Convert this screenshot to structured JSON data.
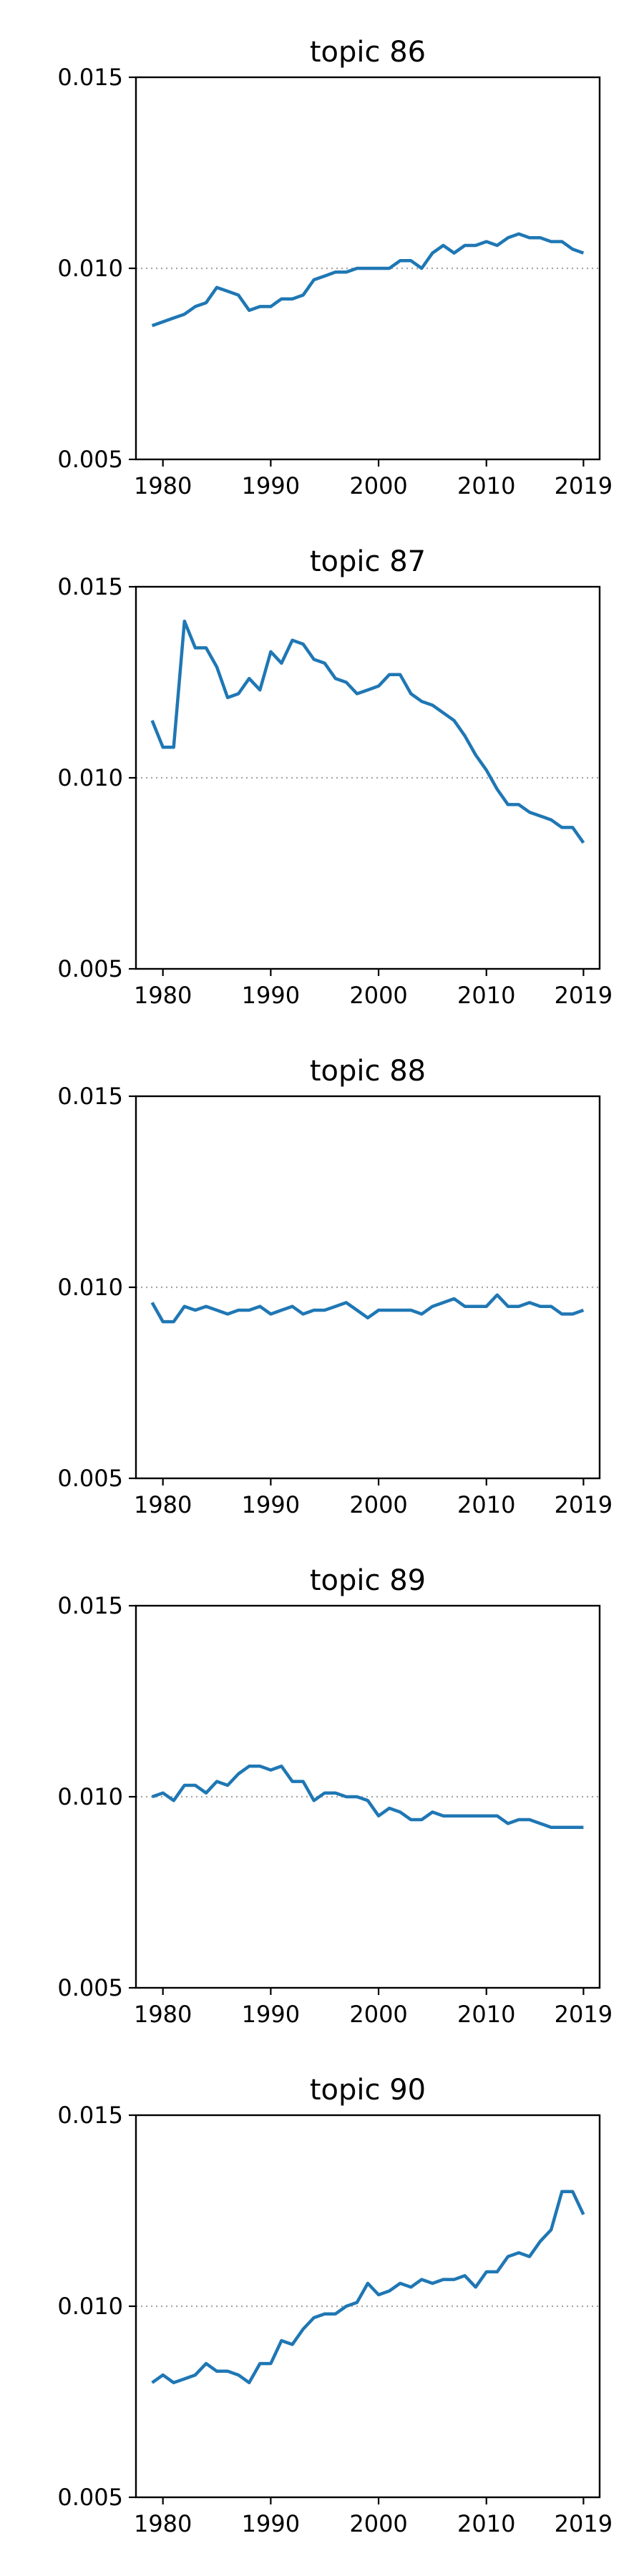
{
  "figure": {
    "background": "#ffffff",
    "line_color": "#1f77b4",
    "reference_line_color": "#a6a6a6"
  },
  "chart_data": [
    {
      "type": "line",
      "title": "topic 86",
      "xlabel": "",
      "ylabel": "",
      "xlim": [
        1977.5,
        2020.5
      ],
      "ylim": [
        0.005,
        0.015
      ],
      "xticks": [
        1980,
        1990,
        2000,
        2010,
        2019
      ],
      "xtick_labels": [
        "1980",
        "1990",
        "2000",
        "2010",
        "2019"
      ],
      "yticks": [
        0.005,
        0.01,
        0.015
      ],
      "ytick_labels": [
        "0.005",
        "0.010",
        "0.015"
      ],
      "reference_line": {
        "y": 0.01,
        "style": "dotted"
      },
      "grid": false,
      "series": [
        {
          "color": "#1f77b4",
          "x": [
            1979,
            1980,
            1981,
            1982,
            1983,
            1984,
            1985,
            1986,
            1987,
            1988,
            1989,
            1990,
            1991,
            1992,
            1993,
            1994,
            1995,
            1996,
            1997,
            1998,
            1999,
            2000,
            2001,
            2002,
            2003,
            2004,
            2005,
            2006,
            2007,
            2008,
            2009,
            2010,
            2011,
            2012,
            2013,
            2014,
            2015,
            2016,
            2017,
            2018,
            2019
          ],
          "values": [
            0.0085,
            0.0086,
            0.0087,
            0.0088,
            0.009,
            0.0091,
            0.0095,
            0.0094,
            0.0093,
            0.0089,
            0.009,
            0.009,
            0.0092,
            0.0092,
            0.0093,
            0.0097,
            0.0098,
            0.0099,
            0.0099,
            0.01,
            0.01,
            0.01,
            0.01,
            0.0102,
            0.0102,
            0.01,
            0.0104,
            0.0106,
            0.0104,
            0.0106,
            0.0106,
            0.0107,
            0.0106,
            0.0108,
            0.0109,
            0.0108,
            0.0108,
            0.0107,
            0.0107,
            0.0105,
            0.0104
          ]
        }
      ]
    },
    {
      "type": "line",
      "title": "topic 87",
      "xlabel": "",
      "ylabel": "",
      "xlim": [
        1977.5,
        2020.5
      ],
      "ylim": [
        0.005,
        0.015
      ],
      "xticks": [
        1980,
        1990,
        2000,
        2010,
        2019
      ],
      "xtick_labels": [
        "1980",
        "1990",
        "2000",
        "2010",
        "2019"
      ],
      "yticks": [
        0.005,
        0.01,
        0.015
      ],
      "ytick_labels": [
        "0.005",
        "0.010",
        "0.015"
      ],
      "reference_line": {
        "y": 0.01,
        "style": "dotted"
      },
      "grid": false,
      "series": [
        {
          "color": "#1f77b4",
          "x": [
            1979,
            1980,
            1981,
            1982,
            1983,
            1984,
            1985,
            1986,
            1987,
            1988,
            1989,
            1990,
            1991,
            1992,
            1993,
            1994,
            1995,
            1996,
            1997,
            1998,
            1999,
            2000,
            2001,
            2002,
            2003,
            2004,
            2005,
            2006,
            2007,
            2008,
            2009,
            2010,
            2011,
            2012,
            2013,
            2014,
            2015,
            2016,
            2017,
            2018,
            2019
          ],
          "values": [
            0.0115,
            0.0108,
            0.0108,
            0.0141,
            0.0134,
            0.0134,
            0.0129,
            0.0121,
            0.0122,
            0.0126,
            0.0123,
            0.0133,
            0.013,
            0.0136,
            0.0135,
            0.0131,
            0.013,
            0.0126,
            0.0125,
            0.0122,
            0.0123,
            0.0124,
            0.0127,
            0.0127,
            0.0122,
            0.012,
            0.0119,
            0.0117,
            0.0115,
            0.0111,
            0.0106,
            0.0102,
            0.0097,
            0.0093,
            0.0093,
            0.0091,
            0.009,
            0.0089,
            0.0087,
            0.0087,
            0.0083
          ]
        }
      ]
    },
    {
      "type": "line",
      "title": "topic 88",
      "xlabel": "",
      "ylabel": "",
      "xlim": [
        1977.5,
        2020.5
      ],
      "ylim": [
        0.005,
        0.015
      ],
      "xticks": [
        1980,
        1990,
        2000,
        2010,
        2019
      ],
      "xtick_labels": [
        "1980",
        "1990",
        "2000",
        "2010",
        "2019"
      ],
      "yticks": [
        0.005,
        0.01,
        0.015
      ],
      "ytick_labels": [
        "0.005",
        "0.010",
        "0.015"
      ],
      "reference_line": {
        "y": 0.01,
        "style": "dotted"
      },
      "grid": false,
      "series": [
        {
          "color": "#1f77b4",
          "x": [
            1979,
            1980,
            1981,
            1982,
            1983,
            1984,
            1985,
            1986,
            1987,
            1988,
            1989,
            1990,
            1991,
            1992,
            1993,
            1994,
            1995,
            1996,
            1997,
            1998,
            1999,
            2000,
            2001,
            2002,
            2003,
            2004,
            2005,
            2006,
            2007,
            2008,
            2009,
            2010,
            2011,
            2012,
            2013,
            2014,
            2015,
            2016,
            2017,
            2018,
            2019
          ],
          "values": [
            0.0096,
            0.0091,
            0.0091,
            0.0095,
            0.0094,
            0.0095,
            0.0094,
            0.0093,
            0.0094,
            0.0094,
            0.0095,
            0.0093,
            0.0094,
            0.0095,
            0.0093,
            0.0094,
            0.0094,
            0.0095,
            0.0096,
            0.0094,
            0.0092,
            0.0094,
            0.0094,
            0.0094,
            0.0094,
            0.0093,
            0.0095,
            0.0096,
            0.0097,
            0.0095,
            0.0095,
            0.0095,
            0.0098,
            0.0095,
            0.0095,
            0.0096,
            0.0095,
            0.0095,
            0.0093,
            0.0093,
            0.0094
          ]
        }
      ]
    },
    {
      "type": "line",
      "title": "topic 89",
      "xlabel": "",
      "ylabel": "",
      "xlim": [
        1977.5,
        2020.5
      ],
      "ylim": [
        0.005,
        0.015
      ],
      "xticks": [
        1980,
        1990,
        2000,
        2010,
        2019
      ],
      "xtick_labels": [
        "1980",
        "1990",
        "2000",
        "2010",
        "2019"
      ],
      "yticks": [
        0.005,
        0.01,
        0.015
      ],
      "ytick_labels": [
        "0.005",
        "0.010",
        "0.015"
      ],
      "reference_line": {
        "y": 0.01,
        "style": "dotted"
      },
      "grid": false,
      "series": [
        {
          "color": "#1f77b4",
          "x": [
            1979,
            1980,
            1981,
            1982,
            1983,
            1984,
            1985,
            1986,
            1987,
            1988,
            1989,
            1990,
            1991,
            1992,
            1993,
            1994,
            1995,
            1996,
            1997,
            1998,
            1999,
            2000,
            2001,
            2002,
            2003,
            2004,
            2005,
            2006,
            2007,
            2008,
            2009,
            2010,
            2011,
            2012,
            2013,
            2014,
            2015,
            2016,
            2017,
            2018,
            2019
          ],
          "values": [
            0.01,
            0.0101,
            0.0099,
            0.0103,
            0.0103,
            0.0101,
            0.0104,
            0.0103,
            0.0106,
            0.0108,
            0.0108,
            0.0107,
            0.0108,
            0.0104,
            0.0104,
            0.0099,
            0.0101,
            0.0101,
            0.01,
            0.01,
            0.0099,
            0.0095,
            0.0097,
            0.0096,
            0.0094,
            0.0094,
            0.0096,
            0.0095,
            0.0095,
            0.0095,
            0.0095,
            0.0095,
            0.0095,
            0.0093,
            0.0094,
            0.0094,
            0.0093,
            0.0092,
            0.0092,
            0.0092,
            0.0092
          ]
        }
      ]
    },
    {
      "type": "line",
      "title": "topic 90",
      "xlabel": "",
      "ylabel": "",
      "xlim": [
        1977.5,
        2020.5
      ],
      "ylim": [
        0.005,
        0.015
      ],
      "xticks": [
        1980,
        1990,
        2000,
        2010,
        2019
      ],
      "xtick_labels": [
        "1980",
        "1990",
        "2000",
        "2010",
        "2019"
      ],
      "yticks": [
        0.005,
        0.01,
        0.015
      ],
      "ytick_labels": [
        "0.005",
        "0.010",
        "0.015"
      ],
      "reference_line": {
        "y": 0.01,
        "style": "dotted"
      },
      "grid": false,
      "series": [
        {
          "color": "#1f77b4",
          "x": [
            1979,
            1980,
            1981,
            1982,
            1983,
            1984,
            1985,
            1986,
            1987,
            1988,
            1989,
            1990,
            1991,
            1992,
            1993,
            1994,
            1995,
            1996,
            1997,
            1998,
            1999,
            2000,
            2001,
            2002,
            2003,
            2004,
            2005,
            2006,
            2007,
            2008,
            2009,
            2010,
            2011,
            2012,
            2013,
            2014,
            2015,
            2016,
            2017,
            2018,
            2019
          ],
          "values": [
            0.008,
            0.0082,
            0.008,
            0.0081,
            0.0082,
            0.0085,
            0.0083,
            0.0083,
            0.0082,
            0.008,
            0.0085,
            0.0085,
            0.0091,
            0.009,
            0.0094,
            0.0097,
            0.0098,
            0.0098,
            0.01,
            0.0101,
            0.0106,
            0.0103,
            0.0104,
            0.0106,
            0.0105,
            0.0107,
            0.0106,
            0.0107,
            0.0107,
            0.0108,
            0.0105,
            0.0109,
            0.0109,
            0.0113,
            0.0114,
            0.0113,
            0.0117,
            0.012,
            0.013,
            0.013,
            0.0124
          ]
        }
      ]
    }
  ]
}
